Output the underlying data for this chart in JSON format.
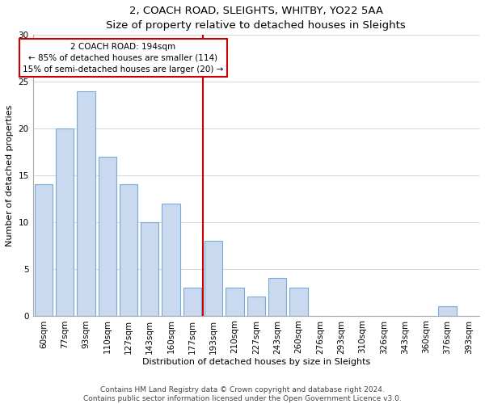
{
  "title": "2, COACH ROAD, SLEIGHTS, WHITBY, YO22 5AA",
  "subtitle": "Size of property relative to detached houses in Sleights",
  "xlabel": "Distribution of detached houses by size in Sleights",
  "ylabel": "Number of detached properties",
  "bar_color": "#c8d9f0",
  "bar_edge_color": "#7aaad4",
  "categories": [
    "60sqm",
    "77sqm",
    "93sqm",
    "110sqm",
    "127sqm",
    "143sqm",
    "160sqm",
    "177sqm",
    "193sqm",
    "210sqm",
    "227sqm",
    "243sqm",
    "260sqm",
    "276sqm",
    "293sqm",
    "310sqm",
    "326sqm",
    "343sqm",
    "360sqm",
    "376sqm",
    "393sqm"
  ],
  "values": [
    14,
    20,
    24,
    17,
    14,
    10,
    12,
    3,
    8,
    3,
    2,
    4,
    3,
    0,
    0,
    0,
    0,
    0,
    0,
    1,
    0
  ],
  "ylim": [
    0,
    30
  ],
  "yticks": [
    0,
    5,
    10,
    15,
    20,
    25,
    30
  ],
  "property_bin_index": 8,
  "property_line_label": "2 COACH ROAD: 194sqm",
  "annotation_line1": "← 85% of detached houses are smaller (114)",
  "annotation_line2": "15% of semi-detached houses are larger (20) →",
  "annotation_box_color": "#ffffff",
  "annotation_box_edge_color": "#cc0000",
  "vline_color": "#cc0000",
  "footer1": "Contains HM Land Registry data © Crown copyright and database right 2024.",
  "footer2": "Contains public sector information licensed under the Open Government Licence v3.0.",
  "title_fontsize": 9.5,
  "subtitle_fontsize": 8.5,
  "axis_label_fontsize": 8,
  "tick_fontsize": 7.5,
  "annotation_fontsize": 7.5,
  "footer_fontsize": 6.5
}
